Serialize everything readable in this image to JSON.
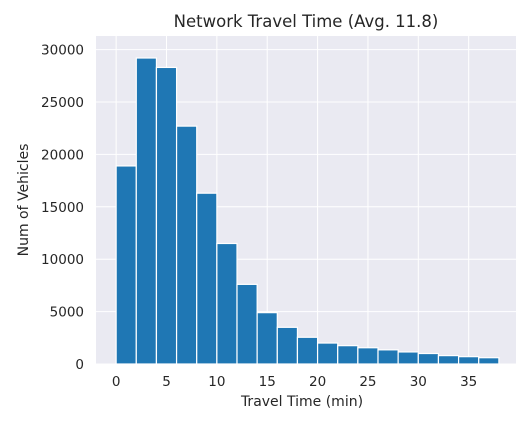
{
  "chart_data": {
    "type": "bar",
    "title": "Network Travel Time (Avg. 11.8)",
    "xlabel": "Travel Time (min)",
    "ylabel": "Num of Vehicles",
    "bin_edges": [
      0,
      2,
      4,
      6,
      8,
      10,
      12,
      14,
      16,
      18,
      20,
      22,
      24,
      26,
      28,
      30,
      32,
      34,
      36,
      38
    ],
    "values": [
      18900,
      29200,
      28300,
      22700,
      16300,
      11500,
      7600,
      4900,
      3500,
      2550,
      2000,
      1750,
      1550,
      1350,
      1150,
      1000,
      800,
      700,
      600
    ],
    "x_ticks": [
      0,
      5,
      10,
      15,
      20,
      25,
      30,
      35
    ],
    "y_ticks": [
      0,
      5000,
      10000,
      15000,
      20000,
      25000,
      30000
    ],
    "xlim": [
      -2,
      39.7
    ],
    "ylim": [
      0,
      31300
    ],
    "grid": true,
    "colors": {
      "bar": "#1f77b4",
      "background": "#eaeaf2",
      "grid": "#ffffff",
      "text": "#262626"
    }
  }
}
